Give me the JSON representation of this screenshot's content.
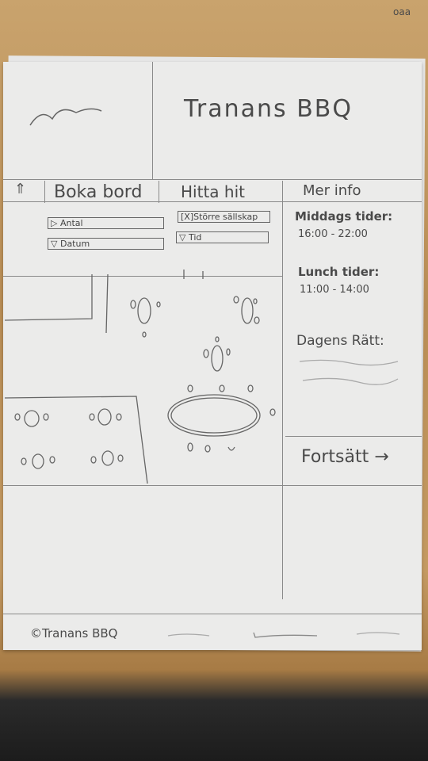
{
  "corner_mark": "oaa",
  "header": {
    "title": "Tranans BBQ"
  },
  "nav": {
    "home_icon": "up-arrow-icon",
    "items": [
      {
        "label": "Boka bord"
      },
      {
        "label": "Hitta hit"
      },
      {
        "label": "Mer info"
      }
    ]
  },
  "booking": {
    "antal_label": "Antal",
    "datum_label": "Datum",
    "storre_label": "Större sällskap",
    "tid_label": "Tid"
  },
  "info": {
    "middag_title": "Middags tider:",
    "middag_hours": "16:00 - 22:00",
    "lunch_title": "Lunch tider:",
    "lunch_hours": "11:00 - 14:00",
    "dagens_title": "Dagens Rätt:"
  },
  "continue_label": "Fortsätt →",
  "footer": {
    "copyright": "©Tranans BBQ"
  }
}
